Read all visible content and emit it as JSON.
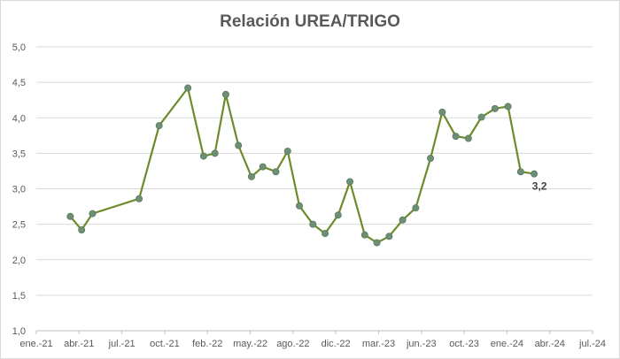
{
  "chart_data": {
    "type": "line",
    "title": "Relación UREA/TRIGO",
    "xlabel": "",
    "ylabel": "",
    "ylim": [
      1.0,
      5.0
    ],
    "y_ticks": [
      "1,0",
      "1,5",
      "2,0",
      "2,5",
      "3,0",
      "3,5",
      "4,0",
      "4,5",
      "5,0"
    ],
    "x_ticks": [
      "ene.-21",
      "abr.-21",
      "jul.-21",
      "oct.-21",
      "feb.-22",
      "may.-22",
      "ago.-22",
      "dic.-22",
      "mar.-23",
      "jun.-23",
      "oct.-23",
      "ene.-24",
      "abr.-24",
      "jul.-24"
    ],
    "grid": "horizontal",
    "line_color": "#6e8b2b",
    "marker_color": "#6d8f74",
    "series": [
      {
        "points": [
          {
            "x": "2021-03-20",
            "y": 2.61
          },
          {
            "x": "2021-04-15",
            "y": 2.42
          },
          {
            "x": "2021-05-10",
            "y": 2.65
          },
          {
            "x": "2021-08-25",
            "y": 2.86
          },
          {
            "x": "2021-10-10",
            "y": 3.89
          },
          {
            "x": "2021-12-15",
            "y": 4.42
          },
          {
            "x": "2022-01-20",
            "y": 3.46
          },
          {
            "x": "2022-02-15",
            "y": 3.5
          },
          {
            "x": "2022-03-12",
            "y": 4.33
          },
          {
            "x": "2022-04-10",
            "y": 3.61
          },
          {
            "x": "2022-05-10",
            "y": 3.17
          },
          {
            "x": "2022-06-05",
            "y": 3.31
          },
          {
            "x": "2022-07-05",
            "y": 3.24
          },
          {
            "x": "2022-08-01",
            "y": 3.53
          },
          {
            "x": "2022-08-28",
            "y": 2.76
          },
          {
            "x": "2022-09-28",
            "y": 2.5
          },
          {
            "x": "2022-10-26",
            "y": 2.37
          },
          {
            "x": "2022-11-25",
            "y": 2.63
          },
          {
            "x": "2022-12-22",
            "y": 3.1
          },
          {
            "x": "2023-01-25",
            "y": 2.35
          },
          {
            "x": "2023-02-22",
            "y": 2.24
          },
          {
            "x": "2023-03-22",
            "y": 2.33
          },
          {
            "x": "2023-04-22",
            "y": 2.56
          },
          {
            "x": "2023-05-22",
            "y": 2.73
          },
          {
            "x": "2023-06-25",
            "y": 3.43
          },
          {
            "x": "2023-07-22",
            "y": 4.08
          },
          {
            "x": "2023-08-22",
            "y": 3.74
          },
          {
            "x": "2023-09-20",
            "y": 3.71
          },
          {
            "x": "2023-10-20",
            "y": 4.01
          },
          {
            "x": "2023-11-20",
            "y": 4.13
          },
          {
            "x": "2023-12-20",
            "y": 4.16
          },
          {
            "x": "2024-01-18",
            "y": 3.24
          },
          {
            "x": "2024-02-18",
            "y": 3.21
          }
        ]
      }
    ],
    "annotations": [
      {
        "text": "3,2",
        "point_index": 32
      }
    ]
  }
}
